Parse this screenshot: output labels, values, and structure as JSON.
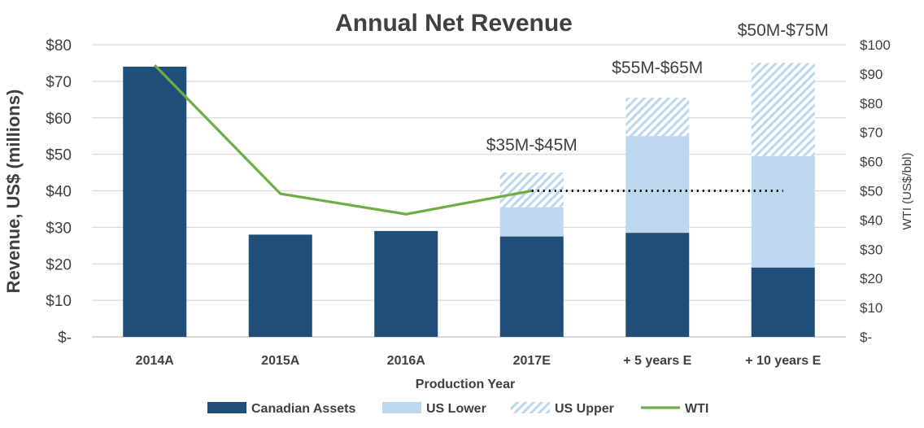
{
  "chart_data": {
    "type": "bar",
    "title": "Annual Net Revenue",
    "xlabel": "Production Year",
    "ylabel": "Revenue, US$ (millions)",
    "y2label": "WTI (US$/bbl)",
    "categories": [
      "2014A",
      "2015A",
      "2016A",
      "2017E",
      "+ 5 years E",
      "+ 10 years E"
    ],
    "ylim": [
      0,
      80
    ],
    "y2lim": [
      0,
      100
    ],
    "yticks": [
      "$-",
      "$10",
      "$20",
      "$30",
      "$40",
      "$50",
      "$60",
      "$70",
      "$80"
    ],
    "y2ticks": [
      "$-",
      "$10",
      "$20",
      "$30",
      "$40",
      "$50",
      "$60",
      "$70",
      "$80",
      "$90",
      "$100"
    ],
    "grid": true,
    "legend_position": "bottom",
    "stacked": true,
    "series": [
      {
        "name": "Canadian Assets",
        "type": "bar",
        "color": "#1f4e79",
        "values": [
          74,
          28,
          29,
          27.5,
          28.5,
          19
        ]
      },
      {
        "name": "US Lower",
        "type": "bar",
        "color": "#bdd7ee",
        "values": [
          0,
          0,
          0,
          8,
          26.5,
          30.5
        ]
      },
      {
        "name": "US Upper",
        "type": "bar-hatched",
        "color": "#bdd7ee",
        "values": [
          0,
          0,
          0,
          9.5,
          10.5,
          25.5
        ]
      },
      {
        "name": "WTI",
        "type": "line",
        "axis": "right",
        "color": "#70ad47",
        "values": [
          93,
          49,
          42,
          50,
          null,
          null
        ]
      }
    ],
    "projection_line": {
      "axis": "right",
      "value": 50,
      "from": "2017E",
      "to": "+ 10 years E",
      "style": "dotted"
    },
    "annotations": [
      {
        "category": "2017E",
        "text": "$35M-$45M"
      },
      {
        "category": "+ 5 years E",
        "text": "$55M-$65M"
      },
      {
        "category": "+ 10 years E",
        "text": "$50M-$75M"
      }
    ]
  }
}
